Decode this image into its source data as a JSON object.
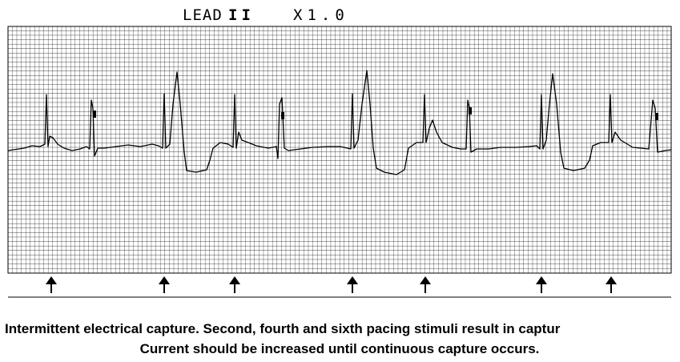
{
  "header": {
    "lead": "LEAD",
    "lead_number": "II",
    "gain": "X1.0"
  },
  "caption": {
    "line1": "Intermittent electrical capture. Second, fourth and sixth pacing stimuli result in captur",
    "line2": "Current should be increased until continuous capture occurs."
  }
}
